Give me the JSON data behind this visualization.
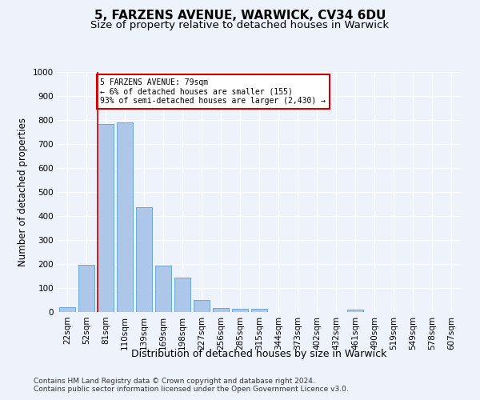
{
  "title1": "5, FARZENS AVENUE, WARWICK, CV34 6DU",
  "title2": "Size of property relative to detached houses in Warwick",
  "xlabel": "Distribution of detached houses by size in Warwick",
  "ylabel": "Number of detached properties",
  "categories": [
    "22sqm",
    "52sqm",
    "81sqm",
    "110sqm",
    "139sqm",
    "169sqm",
    "198sqm",
    "227sqm",
    "256sqm",
    "285sqm",
    "315sqm",
    "344sqm",
    "373sqm",
    "402sqm",
    "432sqm",
    "461sqm",
    "490sqm",
    "519sqm",
    "549sqm",
    "578sqm",
    "607sqm"
  ],
  "values": [
    20,
    196,
    783,
    789,
    436,
    193,
    143,
    50,
    18,
    13,
    12,
    0,
    0,
    0,
    0,
    10,
    0,
    0,
    0,
    0,
    0
  ],
  "bar_color": "#aec6e8",
  "bar_edge_color": "#5a9fd4",
  "red_line_index": 2,
  "annotation_text": "5 FARZENS AVENUE: 79sqm\n← 6% of detached houses are smaller (155)\n93% of semi-detached houses are larger (2,430) →",
  "annotation_box_color": "#ffffff",
  "annotation_box_edge_color": "#cc0000",
  "red_line_color": "#cc0000",
  "ylim": [
    0,
    1000
  ],
  "yticks": [
    0,
    100,
    200,
    300,
    400,
    500,
    600,
    700,
    800,
    900,
    1000
  ],
  "footer1": "Contains HM Land Registry data © Crown copyright and database right 2024.",
  "footer2": "Contains public sector information licensed under the Open Government Licence v3.0.",
  "title1_fontsize": 11,
  "title2_fontsize": 9.5,
  "ylabel_fontsize": 8.5,
  "xlabel_fontsize": 9,
  "tick_fontsize": 7.5,
  "footer_fontsize": 6.5,
  "background_color": "#eef2fb"
}
